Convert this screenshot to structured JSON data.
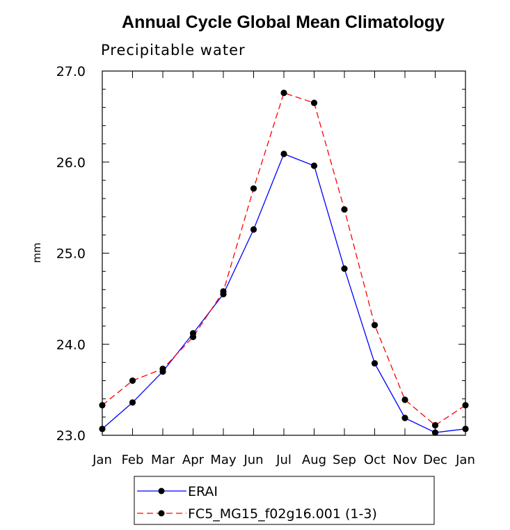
{
  "chart_data": {
    "type": "line",
    "title": "Annual Cycle Global Mean Climatology",
    "subtitle": "Precipitable water",
    "xlabel": "",
    "ylabel": "mm",
    "categories": [
      "Jan",
      "Feb",
      "Mar",
      "Apr",
      "May",
      "Jun",
      "Jul",
      "Aug",
      "Sep",
      "Oct",
      "Nov",
      "Dec",
      "Jan"
    ],
    "ylim": [
      23.0,
      27.0
    ],
    "yticks": [
      "23.0",
      "24.0",
      "25.0",
      "26.0",
      "27.0"
    ],
    "series": [
      {
        "name": "ERAI",
        "color": "#0000ff",
        "style": "solid",
        "values": [
          23.07,
          23.36,
          23.7,
          24.12,
          24.55,
          25.26,
          26.09,
          25.96,
          24.83,
          23.79,
          23.19,
          23.03,
          23.07
        ]
      },
      {
        "name": "FC5_MG15_f02g16.001 (1-3)",
        "color": "#ff0000",
        "style": "dashed",
        "values": [
          23.33,
          23.6,
          23.73,
          24.08,
          24.58,
          25.71,
          26.76,
          26.65,
          25.48,
          24.21,
          23.39,
          23.11,
          23.33
        ]
      }
    ],
    "marker": "filled-circle",
    "marker_color": "#000000",
    "legend_position": "bottom"
  }
}
